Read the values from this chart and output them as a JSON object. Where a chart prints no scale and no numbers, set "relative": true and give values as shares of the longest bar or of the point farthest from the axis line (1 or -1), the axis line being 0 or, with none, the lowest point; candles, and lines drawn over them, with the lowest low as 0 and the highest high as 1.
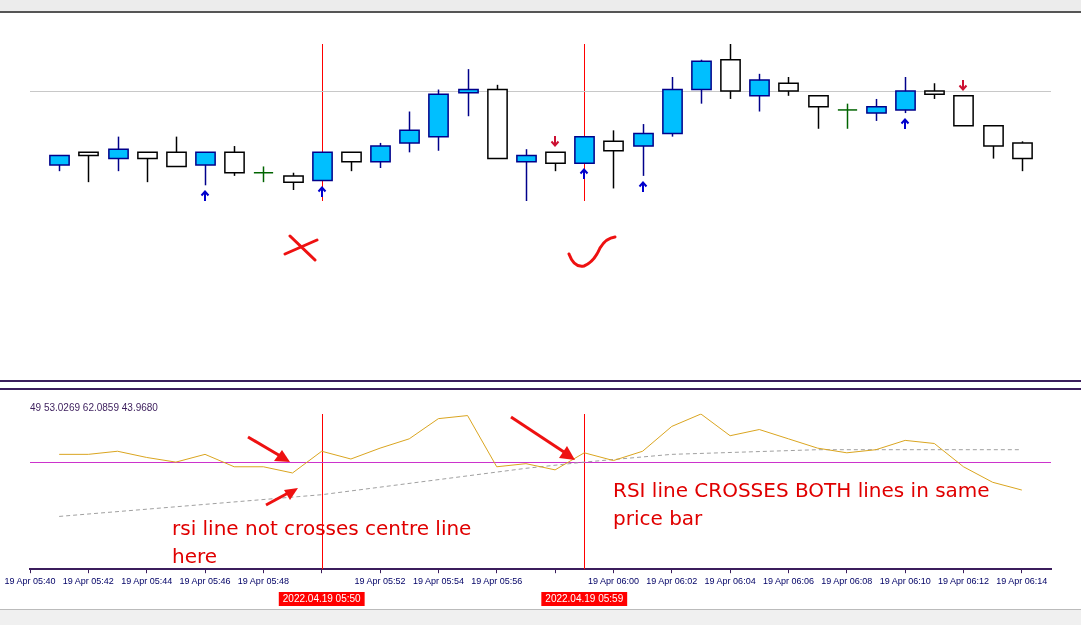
{
  "chart_data": [
    {
      "type": "candlestick",
      "relative": true,
      "tick_labels": false,
      "x": [
        "2022-04-19T05:41",
        "2022-04-19T05:42",
        "2022-04-19T05:43",
        "2022-04-19T05:44",
        "2022-04-19T05:45",
        "2022-04-19T05:46",
        "2022-04-19T05:47",
        "2022-04-19T05:48",
        "2022-04-19T05:49",
        "2022-04-19T05:50",
        "2022-04-19T05:51",
        "2022-04-19T05:52",
        "2022-04-19T05:53",
        "2022-04-19T05:54",
        "2022-04-19T05:55",
        "2022-04-19T05:56",
        "2022-04-19T05:57",
        "2022-04-19T05:58",
        "2022-04-19T05:59",
        "2022-04-19T06:00",
        "2022-04-19T06:01",
        "2022-04-19T06:02",
        "2022-04-19T06:03",
        "2022-04-19T06:04",
        "2022-04-19T06:05",
        "2022-04-19T06:06",
        "2022-04-19T06:07",
        "2022-04-19T06:08",
        "2022-04-19T06:09",
        "2022-04-19T06:10",
        "2022-04-19T06:11",
        "2022-04-19T06:12",
        "2022-04-19T06:13",
        "2022-04-19T06:14"
      ],
      "xlim": [
        "2022-04-19T05:40",
        "2022-04-19T06:15"
      ],
      "ohlc": [
        [
          0.23,
          0.29,
          0.19,
          0.29
        ],
        [
          0.31,
          0.31,
          0.12,
          0.29
        ],
        [
          0.27,
          0.41,
          0.19,
          0.33
        ],
        [
          0.31,
          0.31,
          0.12,
          0.27
        ],
        [
          0.31,
          0.41,
          0.22,
          0.22
        ],
        [
          0.23,
          0.31,
          0.1,
          0.31
        ],
        [
          0.31,
          0.35,
          0.16,
          0.18
        ],
        [
          0.18,
          0.22,
          0.12,
          0.18
        ],
        [
          0.16,
          0.18,
          0.07,
          0.12
        ],
        [
          0.13,
          0.31,
          0.13,
          0.31
        ],
        [
          0.31,
          0.31,
          0.19,
          0.25
        ],
        [
          0.25,
          0.37,
          0.21,
          0.35
        ],
        [
          0.37,
          0.57,
          0.31,
          0.45
        ],
        [
          0.41,
          0.71,
          0.32,
          0.68
        ],
        [
          0.69,
          0.84,
          0.54,
          0.71
        ],
        [
          0.71,
          0.74,
          0.27,
          0.27
        ],
        [
          0.25,
          0.33,
          0,
          0.29
        ],
        [
          0.31,
          0.31,
          0.19,
          0.24
        ],
        [
          0.24,
          0.41,
          0.24,
          0.41
        ],
        [
          0.38,
          0.45,
          0.08,
          0.32
        ],
        [
          0.35,
          0.49,
          0.16,
          0.43
        ],
        [
          0.43,
          0.79,
          0.41,
          0.71
        ],
        [
          0.71,
          0.9,
          0.62,
          0.89
        ],
        [
          0.9,
          1,
          0.65,
          0.7
        ],
        [
          0.67,
          0.81,
          0.57,
          0.77
        ],
        [
          0.75,
          0.79,
          0.67,
          0.7
        ],
        [
          0.67,
          0.67,
          0.46,
          0.6
        ],
        [
          0.58,
          0.62,
          0.46,
          0.58
        ],
        [
          0.56,
          0.65,
          0.51,
          0.6
        ],
        [
          0.58,
          0.79,
          0.56,
          0.7
        ],
        [
          0.7,
          0.75,
          0.65,
          0.68
        ],
        [
          0.67,
          0.67,
          0.48,
          0.48
        ],
        [
          0.48,
          0.48,
          0.27,
          0.35
        ],
        [
          0.37,
          0.38,
          0.19,
          0.27
        ]
      ],
      "colors": [
        "#00bfff",
        "#ffffff",
        "#00bfff",
        "#ffffff",
        "#ffffff",
        "#00bfff",
        "#ffffff",
        "#006400",
        "#ffffff",
        "#00bfff",
        "#ffffff",
        "#00bfff",
        "#00bfff",
        "#00bfff",
        "#00bfff",
        "#ffffff",
        "#00bfff",
        "#ffffff",
        "#00bfff",
        "#ffffff",
        "#00bfff",
        "#00bfff",
        "#00bfff",
        "#ffffff",
        "#00bfff",
        "#ffffff",
        "#ffffff",
        "#006400",
        "#00bfff",
        "#00bfff",
        "#ffffff",
        "#ffffff",
        "#ffffff",
        "#ffffff"
      ],
      "ref_lines": [
        {
          "axis": "x",
          "value": "2022-04-19T05:50",
          "color": "#ff0000"
        },
        {
          "axis": "x",
          "value": "2022-04-19T05:59",
          "color": "#ff0000"
        },
        {
          "axis": "y",
          "value": 0.7,
          "color": "#c8c8c8"
        }
      ]
    },
    {
      "type": "line",
      "relative": true,
      "subtitle": "49 53.0269 62.0859 43.9680",
      "x": [
        "2022-04-19T05:41",
        "2022-04-19T05:42",
        "2022-04-19T05:43",
        "2022-04-19T05:44",
        "2022-04-19T05:45",
        "2022-04-19T05:46",
        "2022-04-19T05:47",
        "2022-04-19T05:48",
        "2022-04-19T05:49",
        "2022-04-19T05:50",
        "2022-04-19T05:51",
        "2022-04-19T05:52",
        "2022-04-19T05:53",
        "2022-04-19T05:54",
        "2022-04-19T05:55",
        "2022-04-19T05:56",
        "2022-04-19T05:57",
        "2022-04-19T05:58",
        "2022-04-19T05:59",
        "2022-04-19T06:00",
        "2022-04-19T06:01",
        "2022-04-19T06:02",
        "2022-04-19T06:03",
        "2022-04-19T06:04",
        "2022-04-19T06:05",
        "2022-04-19T06:06",
        "2022-04-19T06:07",
        "2022-04-19T06:08",
        "2022-04-19T06:09",
        "2022-04-19T06:10",
        "2022-04-19T06:11",
        "2022-04-19T06:12",
        "2022-04-19T06:13",
        "2022-04-19T06:14"
      ],
      "xlim": [
        "2022-04-19T05:40",
        "2022-04-19T06:15"
      ],
      "xticks": [
        {
          "value": "2022-04-19T05:40",
          "label": "19 Apr 05:40"
        },
        {
          "value": "2022-04-19T05:42",
          "label": "19 Apr 05:42"
        },
        {
          "value": "2022-04-19T05:44",
          "label": "19 Apr 05:44"
        },
        {
          "value": "2022-04-19T05:46",
          "label": "19 Apr 05:46"
        },
        {
          "value": "2022-04-19T05:48",
          "label": "19 Apr 05:48"
        },
        {
          "value": "2022-04-19T05:50",
          "label": null
        },
        {
          "value": "2022-04-19T05:52",
          "label": "19 Apr 05:52"
        },
        {
          "value": "2022-04-19T05:54",
          "label": "19 Apr 05:54"
        },
        {
          "value": "2022-04-19T05:56",
          "label": "19 Apr 05:56"
        },
        {
          "value": "2022-04-19T05:58",
          "label": null
        },
        {
          "value": "2022-04-19T06:00",
          "label": "19 Apr 06:00"
        },
        {
          "value": "2022-04-19T06:02",
          "label": "19 Apr 06:02"
        },
        {
          "value": "2022-04-19T06:04",
          "label": "19 Apr 06:04"
        },
        {
          "value": "2022-04-19T06:06",
          "label": "19 Apr 06:06"
        },
        {
          "value": "2022-04-19T06:08",
          "label": "19 Apr 06:08"
        },
        {
          "value": "2022-04-19T06:10",
          "label": "19 Apr 06:10"
        },
        {
          "value": "2022-04-19T06:12",
          "label": "19 Apr 06:12"
        },
        {
          "value": "2022-04-19T06:14",
          "label": "19 Apr 06:14"
        }
      ],
      "series": [
        {
          "color": "#daa520",
          "values": [
            0.74,
            0.74,
            0.76,
            0.72,
            0.69,
            0.74,
            0.66,
            0.66,
            0.62,
            0.76,
            0.71,
            0.78,
            0.84,
            0.97,
            0.99,
            0.66,
            0.68,
            0.64,
            0.75,
            0.7,
            0.76,
            0.92,
            1,
            0.86,
            0.9,
            0.84,
            0.78,
            0.75,
            0.77,
            0.83,
            0.81,
            0.66,
            0.56,
            0.51
          ]
        },
        {
          "color": "#a0a0a0",
          "line_style": "dashed",
          "x": [
            "2022-04-19T05:41",
            "2022-04-19T05:50",
            "2022-04-19T05:57",
            "2022-04-19T05:59",
            "2022-04-19T06:02",
            "2022-04-19T06:07",
            "2022-04-19T06:14"
          ],
          "values": [
            0.34,
            0.48,
            0.65,
            0.69,
            0.74,
            0.77,
            0.77
          ]
        }
      ],
      "ref_lines": [
        {
          "axis": "x",
          "value": "2022-04-19T05:50",
          "label": "2022.04.19 05:50",
          "color": "#ff0000"
        },
        {
          "axis": "x",
          "value": "2022-04-19T05:59",
          "label": "2022.04.19 05:59",
          "color": "#ff0000"
        },
        {
          "axis": "y",
          "value": 0.69,
          "color": "#cc33cc"
        }
      ],
      "annotations": [
        "rsi line not crosses centre line here",
        "RSI line CROSSES BOTH lines in same price bar"
      ]
    }
  ]
}
